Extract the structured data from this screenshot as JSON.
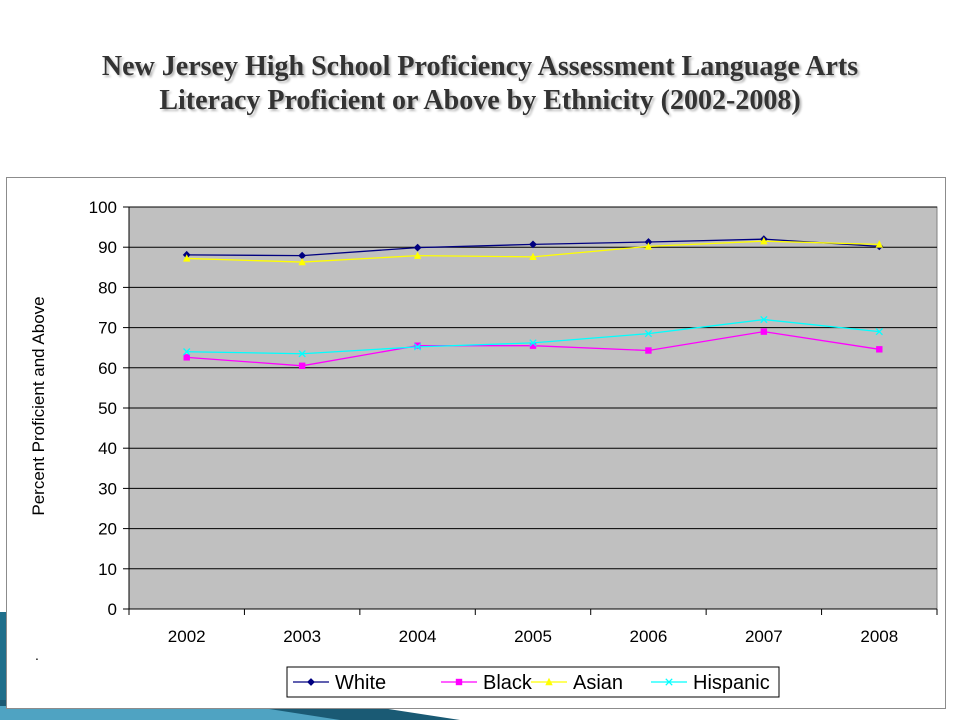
{
  "title": {
    "line1": "New Jersey High School Proficiency Assessment Language Arts",
    "line2": "Literacy Proficient or Above by Ethnicity (2002-2008)"
  },
  "footnote": ".",
  "colors": {
    "plot_bg": "#c0c0c0",
    "white": "#000080",
    "black": "#ff00ff",
    "asian": "#ffff00",
    "hispanic": "#00ffff"
  },
  "chart_data": {
    "type": "line",
    "title": "New Jersey High School Proficiency Assessment Language Arts Literacy Proficient or Above by Ethnicity (2002-2008)",
    "xlabel": "",
    "ylabel": "Percent Proficient and Above",
    "categories": [
      "2002",
      "2003",
      "2004",
      "2005",
      "2006",
      "2007",
      "2008"
    ],
    "yticks": [
      "0",
      "10",
      "20",
      "30",
      "40",
      "50",
      "60",
      "70",
      "80",
      "90",
      "100"
    ],
    "ylim": [
      0,
      100
    ],
    "grid": true,
    "legend": "bottom",
    "series": [
      {
        "name": "White",
        "color": "#000080",
        "marker": "diamond",
        "values": [
          88.1,
          87.9,
          89.9,
          90.7,
          91.3,
          92.0,
          90.2
        ]
      },
      {
        "name": "Black",
        "color": "#ff00ff",
        "marker": "square",
        "values": [
          62.6,
          60.5,
          65.5,
          65.5,
          64.3,
          69.0,
          64.6
        ]
      },
      {
        "name": "Asian",
        "color": "#ffff00",
        "marker": "triangle",
        "values": [
          87.2,
          86.3,
          87.9,
          87.6,
          90.2,
          91.5,
          90.7
        ]
      },
      {
        "name": "Hispanic",
        "color": "#00ffff",
        "marker": "x",
        "values": [
          64.0,
          63.5,
          65.2,
          66.2,
          68.5,
          72.0,
          69.0
        ]
      }
    ]
  }
}
